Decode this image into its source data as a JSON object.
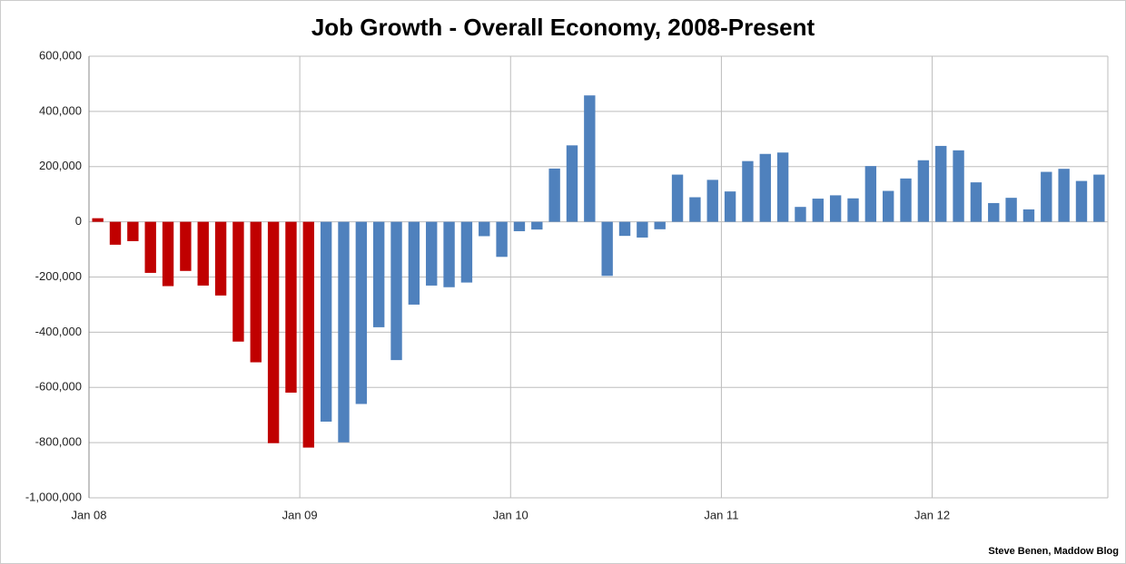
{
  "chart_data": {
    "type": "bar",
    "title": "Job Growth - Overall Economy, 2008-Present",
    "source": "Steve Benen, Maddow Blog",
    "categories": [
      "Jan 08",
      null,
      null,
      null,
      null,
      null,
      null,
      null,
      null,
      null,
      null,
      null,
      "Jan 09",
      null,
      null,
      null,
      null,
      null,
      null,
      null,
      null,
      null,
      null,
      null,
      "Jan 10",
      null,
      null,
      null,
      null,
      null,
      null,
      null,
      null,
      null,
      null,
      null,
      "Jan 11",
      null,
      null,
      null,
      null,
      null,
      null,
      null,
      null,
      null,
      null,
      null,
      "Jan 12",
      null,
      null,
      null,
      null,
      null,
      null,
      null,
      null,
      null
    ],
    "values": [
      13000,
      -83000,
      -70000,
      -185000,
      -233000,
      -178000,
      -231000,
      -267000,
      -434000,
      -509000,
      -802000,
      -619000,
      -818000,
      -724000,
      -799000,
      -660000,
      -382000,
      -501000,
      -300000,
      -231000,
      -237000,
      -220000,
      -52000,
      -127000,
      -34000,
      -28000,
      193000,
      277000,
      458000,
      -196000,
      -51000,
      -57000,
      -27000,
      171000,
      89000,
      152000,
      110000,
      220000,
      246000,
      251000,
      54000,
      84000,
      96000,
      85000,
      202000,
      112000,
      157000,
      223000,
      275000,
      259000,
      143000,
      68000,
      87000,
      45000,
      181000,
      192000,
      148000,
      171000
    ],
    "colors": [
      "#c00000",
      "#c00000",
      "#c00000",
      "#c00000",
      "#c00000",
      "#c00000",
      "#c00000",
      "#c00000",
      "#c00000",
      "#c00000",
      "#c00000",
      "#c00000",
      "#c00000",
      "#4f81bd",
      "#4f81bd",
      "#4f81bd",
      "#4f81bd",
      "#4f81bd",
      "#4f81bd",
      "#4f81bd",
      "#4f81bd",
      "#4f81bd",
      "#4f81bd",
      "#4f81bd",
      "#4f81bd",
      "#4f81bd",
      "#4f81bd",
      "#4f81bd",
      "#4f81bd",
      "#4f81bd",
      "#4f81bd",
      "#4f81bd",
      "#4f81bd",
      "#4f81bd",
      "#4f81bd",
      "#4f81bd",
      "#4f81bd",
      "#4f81bd",
      "#4f81bd",
      "#4f81bd",
      "#4f81bd",
      "#4f81bd",
      "#4f81bd",
      "#4f81bd",
      "#4f81bd",
      "#4f81bd",
      "#4f81bd",
      "#4f81bd",
      "#4f81bd",
      "#4f81bd",
      "#4f81bd",
      "#4f81bd",
      "#4f81bd",
      "#4f81bd",
      "#4f81bd",
      "#4f81bd",
      "#4f81bd",
      "#4f81bd"
    ],
    "ylim": [
      -1000000,
      600000
    ],
    "yticks": [
      {
        "value": -1000000,
        "label": "-1,000,000"
      },
      {
        "value": -800000,
        "label": "-800,000"
      },
      {
        "value": -600000,
        "label": "-600,000"
      },
      {
        "value": -400000,
        "label": "-400,000"
      },
      {
        "value": -200000,
        "label": "-200,000"
      },
      0,
      {
        "value": 200000,
        "label": "200,000"
      },
      {
        "value": 400000,
        "label": "400,000"
      },
      {
        "value": 600000,
        "label": "600,000"
      }
    ],
    "grid": true
  }
}
